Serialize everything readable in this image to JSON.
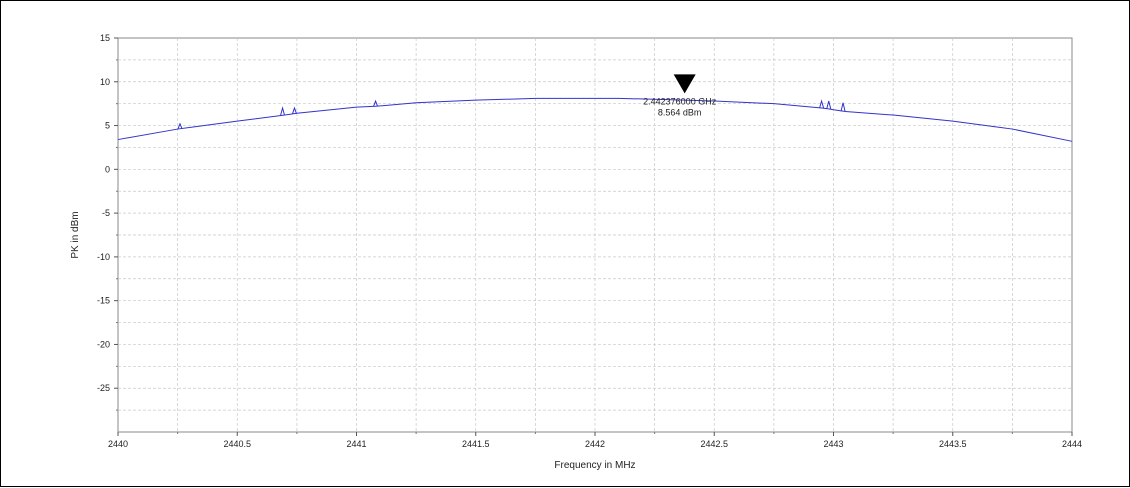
{
  "chart_data": {
    "type": "line",
    "xlabel": "Frequency in MHz",
    "ylabel": "PK in dBm",
    "xlim": [
      2440,
      2444
    ],
    "ylim": [
      -30,
      15
    ],
    "x_ticks": [
      2440,
      2440.5,
      2441,
      2441.5,
      2442,
      2442.5,
      2443,
      2443.5,
      2444
    ],
    "x_tick_labels": [
      "2440",
      "2440.5",
      "2441",
      "2441.5",
      "2442",
      "2442.5",
      "2443",
      "2443.5",
      "2444"
    ],
    "y_ticks": [
      15,
      10,
      5,
      0,
      -5,
      -10,
      -15,
      -20,
      -25
    ],
    "y_tick_labels": [
      "15",
      "10",
      "5",
      "0",
      "-5",
      "-10",
      "-15",
      "-20",
      "-25"
    ],
    "grid": true,
    "line_color": "#3333cc",
    "series": [
      {
        "x": [
          2440,
          2440.25,
          2440.5,
          2440.7,
          2440.75,
          2441,
          2441.08,
          2441.25,
          2441.5,
          2441.75,
          2442,
          2442.1,
          2442.25,
          2442.376,
          2442.5,
          2442.75,
          2442.95,
          2442.98,
          2443,
          2443.05,
          2443.25,
          2443.5,
          2443.75,
          2444
        ],
        "y": [
          3.4,
          4.6,
          5.5,
          6.2,
          6.4,
          7.1,
          7.2,
          7.6,
          7.9,
          8.1,
          8.1,
          8.1,
          8.0,
          7.9,
          7.8,
          7.5,
          7.0,
          6.9,
          6.8,
          6.6,
          6.2,
          5.5,
          4.6,
          3.2
        ]
      }
    ],
    "spikes": [
      {
        "x": 2440.26,
        "y": 5.2
      },
      {
        "x": 2440.69,
        "y": 7.0
      },
      {
        "x": 2440.74,
        "y": 7.0
      },
      {
        "x": 2441.08,
        "y": 7.8
      },
      {
        "x": 2442.95,
        "y": 7.8
      },
      {
        "x": 2442.98,
        "y": 7.8
      },
      {
        "x": 2443.04,
        "y": 7.6
      }
    ],
    "marker": {
      "x": 2442.376,
      "y": 8.564,
      "label_freq": "2.442376000 GHz",
      "label_level": "8.564 dBm"
    }
  }
}
